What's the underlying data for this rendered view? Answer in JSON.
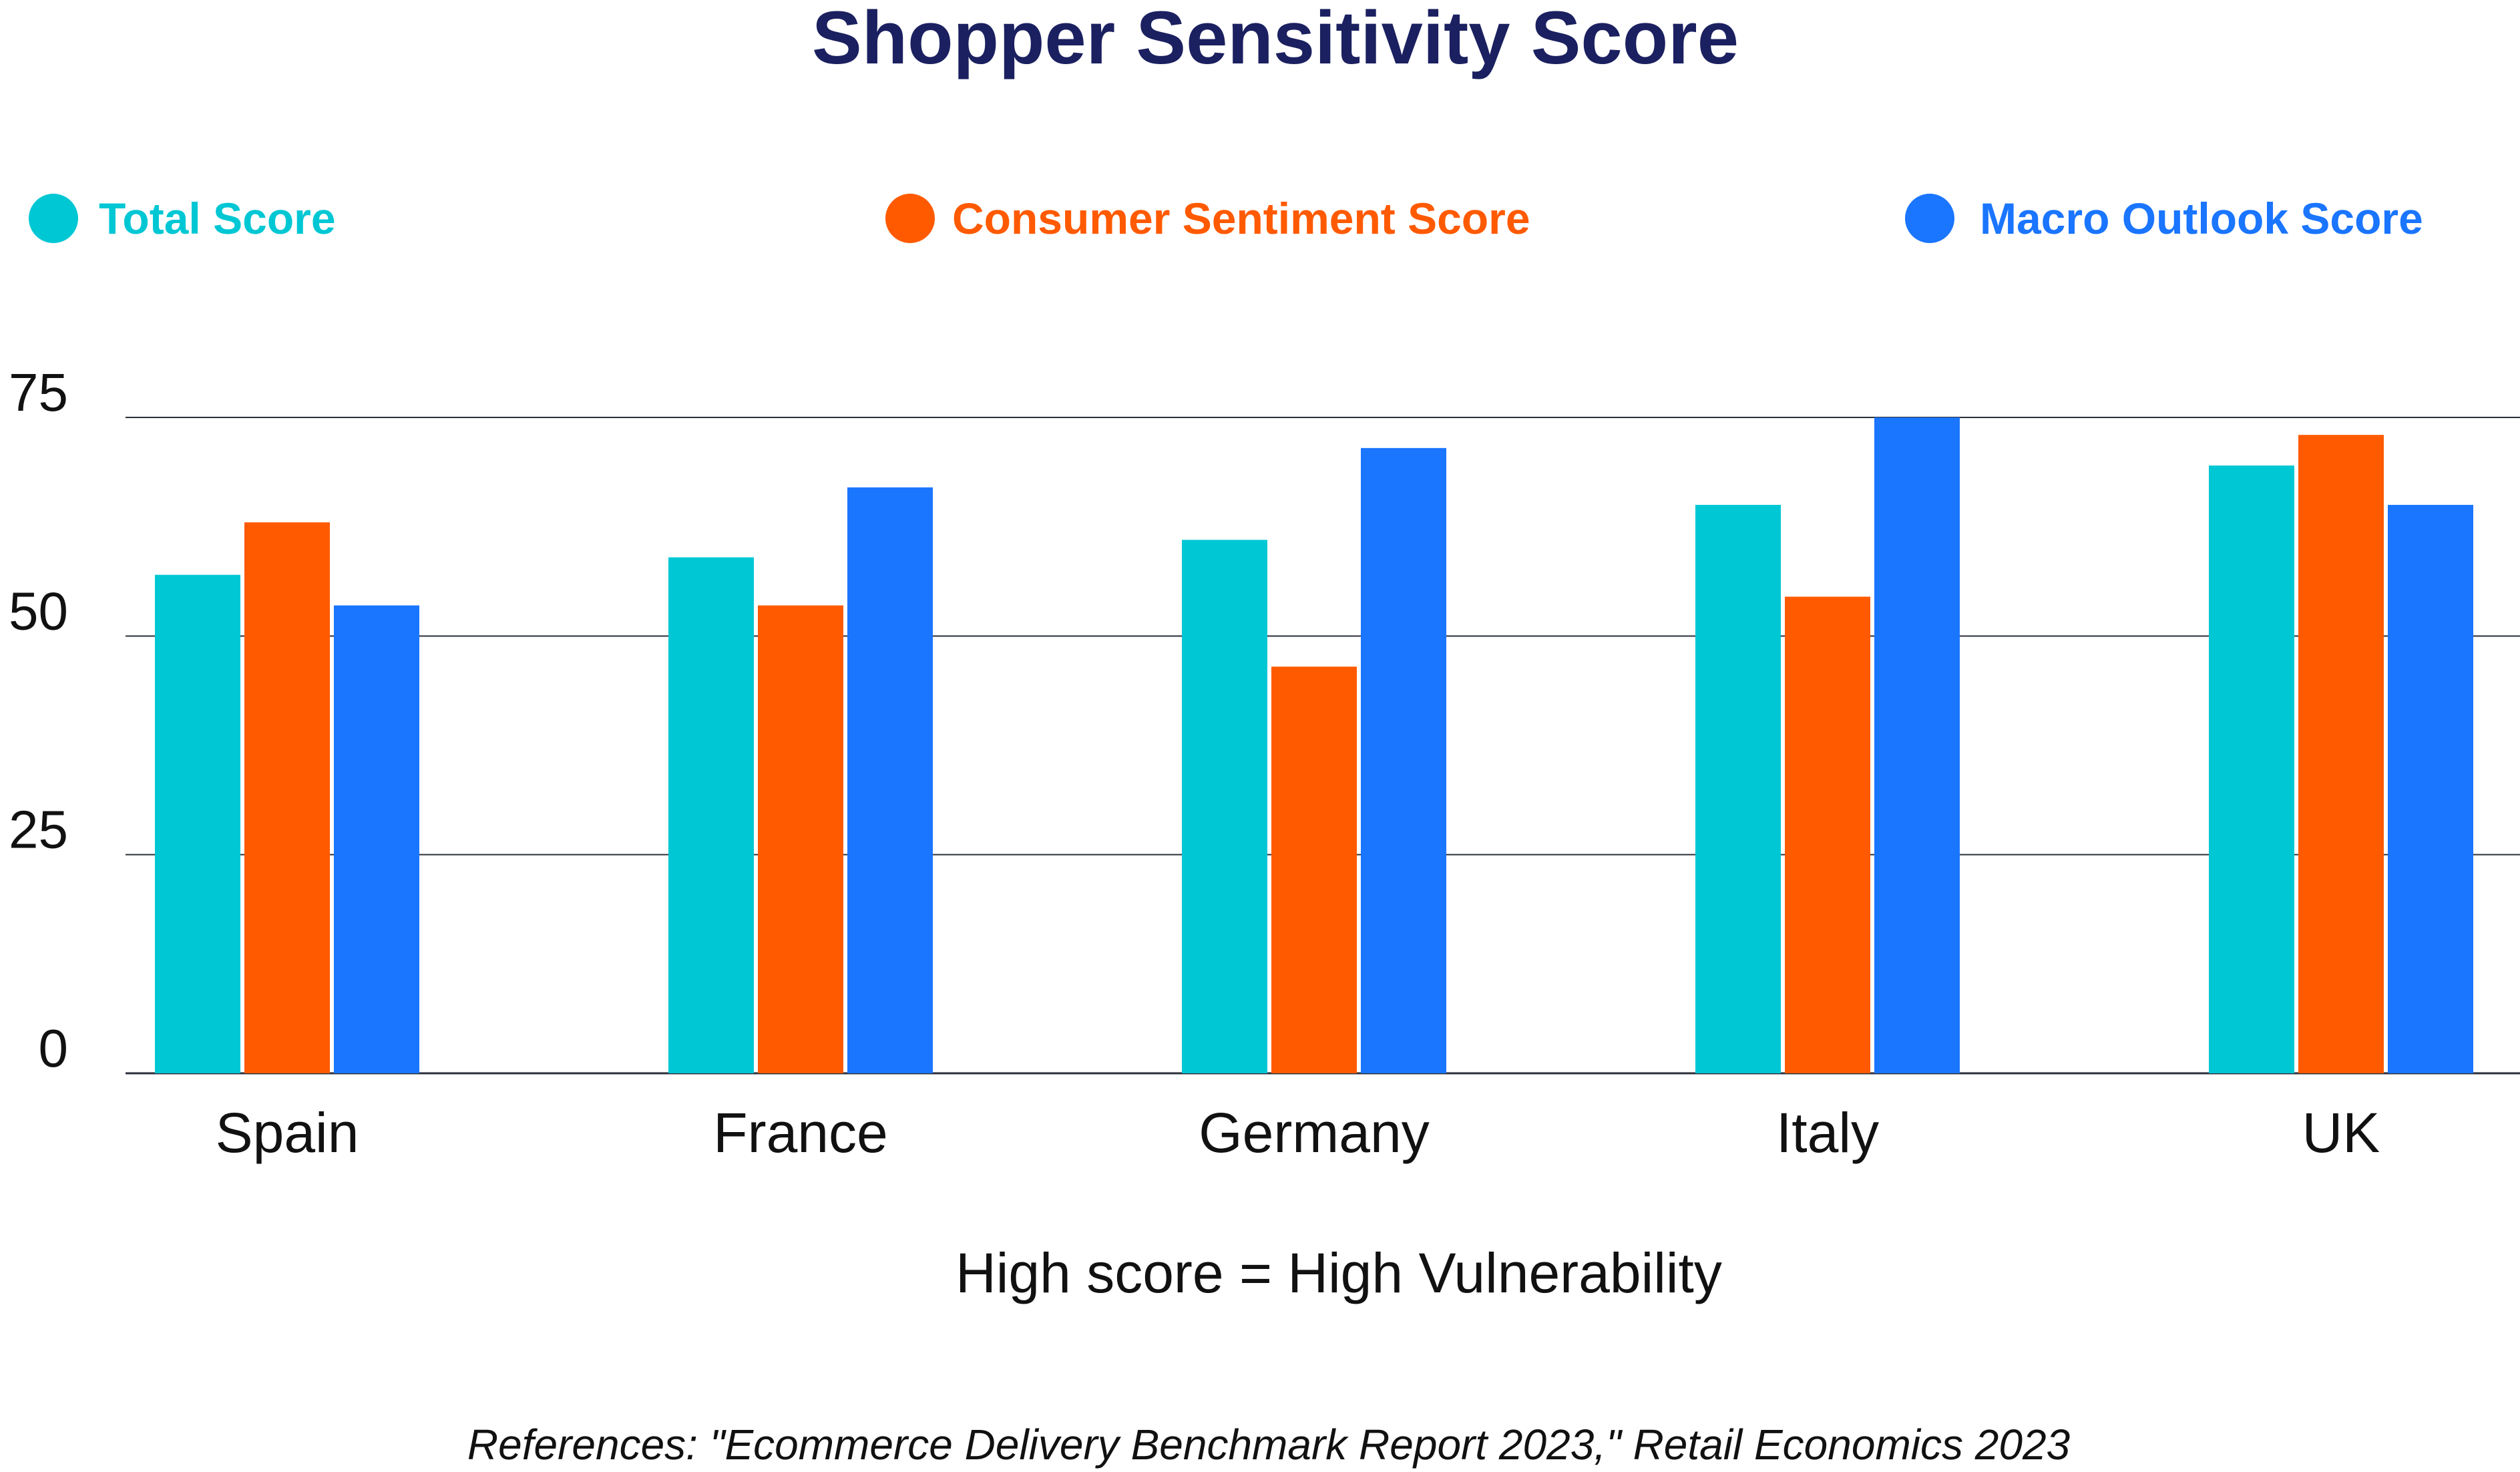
{
  "colors": {
    "title": "#1b2060",
    "total": "#00c7d4",
    "consumer": "#ff5a00",
    "macro": "#1a75ff",
    "gridline": "#2b2f3a",
    "text": "#111111"
  },
  "chart_data": {
    "type": "bar",
    "title": "Shopper Sensitivity Score",
    "categories": [
      "Spain",
      "France",
      "Germany",
      "Italy",
      "UK"
    ],
    "series": [
      {
        "name": "Total Score",
        "color_key": "total",
        "values": [
          57,
          59,
          61,
          65,
          69.5
        ]
      },
      {
        "name": "Consumer Sentiment Score",
        "color_key": "consumer",
        "values": [
          63,
          53.5,
          46.5,
          54.5,
          73
        ]
      },
      {
        "name": "Macro Outlook Score",
        "color_key": "macro",
        "values": [
          53.5,
          67,
          71.5,
          75,
          65
        ]
      }
    ],
    "yticks": [
      "0",
      "25",
      "50",
      "75"
    ],
    "ylim": [
      0,
      75
    ],
    "grid": true,
    "legend_position": "top",
    "xlabel": "High score = High Vulnerability",
    "ylabel": ""
  },
  "footer": {
    "reference": "References: \"Ecommerce Delivery Benchmark Report 2023,\" Retail Economics 2023"
  }
}
